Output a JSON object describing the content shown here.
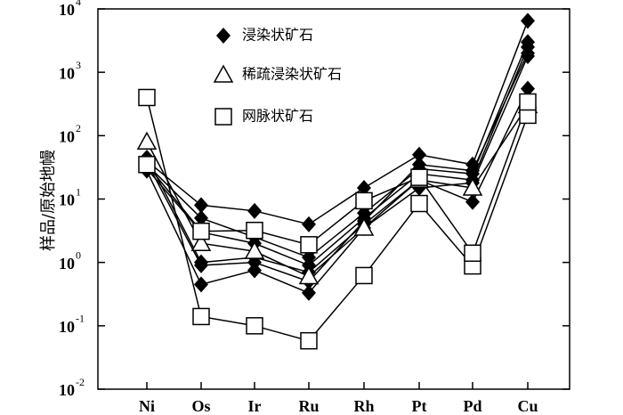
{
  "chart_data": {
    "type": "spider",
    "y_label": "样品/原始地幔",
    "categories": [
      "Ni",
      "Os",
      "Ir",
      "Ru",
      "Rh",
      "Pt",
      "Pd",
      "Cu"
    ],
    "log_y": true,
    "ylim": [
      0.01,
      10000
    ],
    "yticks": [
      {
        "value": 0.01,
        "label": "10",
        "exp": "-2"
      },
      {
        "value": 0.1,
        "label": "10",
        "exp": "-1"
      },
      {
        "value": 1,
        "label": "10",
        "exp": "0"
      },
      {
        "value": 10,
        "label": "10",
        "exp": "1"
      },
      {
        "value": 100,
        "label": "10",
        "exp": "2"
      },
      {
        "value": 1000,
        "label": "10",
        "exp": "3"
      },
      {
        "value": 10000,
        "label": "10",
        "exp": "4"
      }
    ],
    "series": [
      {
        "name": "浸染状矿石",
        "marker": "diamond",
        "color": "#000000",
        "lines": [
          [
            40,
            8,
            6.5,
            4,
            15,
            50,
            35,
            6500
          ],
          [
            35,
            5,
            2.5,
            1.2,
            6,
            30,
            25,
            3000
          ],
          [
            30,
            3,
            2,
            0.9,
            5,
            25,
            20,
            2500
          ],
          [
            45,
            1,
            1.2,
            0.7,
            4,
            20,
            9,
            550
          ],
          [
            28,
            0.45,
            0.75,
            0.33,
            3.5,
            15,
            18,
            1800
          ],
          [
            38,
            0.9,
            1,
            0.5,
            4.5,
            35,
            28,
            2000
          ]
        ]
      },
      {
        "name": "稀疏浸染状矿石",
        "marker": "triangle",
        "color": "#000000",
        "lines": [
          [
            80,
            2,
            1.5,
            0.6,
            3.5,
            20,
            15,
            300
          ]
        ]
      },
      {
        "name": "网脉状矿石",
        "marker": "square",
        "color": "#000000",
        "lines": [
          [
            400,
            0.14,
            0.1,
            0.058,
            0.62,
            8.5,
            0.88,
            210
          ],
          [
            35,
            3.1,
            3.2,
            1.9,
            9.4,
            22,
            1.4,
            340
          ]
        ]
      }
    ]
  }
}
